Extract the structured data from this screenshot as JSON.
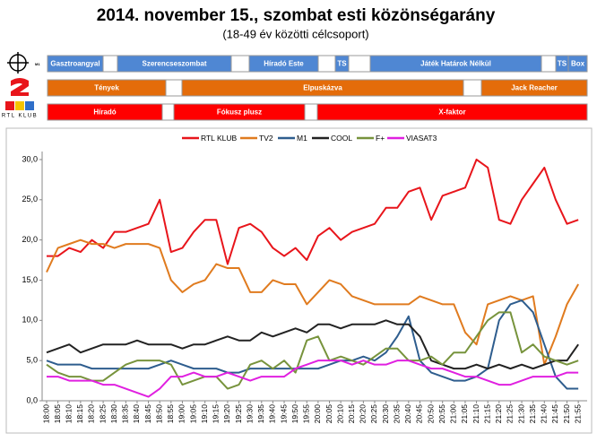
{
  "chart_data": {
    "type": "line",
    "title": "2014. november 15., szombat esti közönségarány",
    "subtitle": "(18-49 év közötti célcsoport)",
    "schedule": [
      {
        "channel": "M1",
        "programs": [
          "Gasztroangyal",
          "Szerencseszombat",
          "Híradó Este",
          "TS",
          "Játék Határok Nélkül",
          "TS",
          "Box"
        ]
      },
      {
        "programs": [
          "Tények",
          "Elpuskázva",
          "Jack Reacher"
        ]
      },
      {
        "channel": "RTL KLUB",
        "programs": [
          "Híradó",
          "Fókusz plusz",
          "X-faktor"
        ]
      }
    ],
    "categories": [
      "18:00",
      "18:05",
      "18:10",
      "18:15",
      "18:20",
      "18:25",
      "18:30",
      "18:35",
      "18:40",
      "18:45",
      "18:50",
      "18:55",
      "19:00",
      "19:05",
      "19:10",
      "19:15",
      "19:20",
      "19:25",
      "19:30",
      "19:35",
      "19:40",
      "19:45",
      "19:50",
      "19:55",
      "20:00",
      "20:05",
      "20:10",
      "20:15",
      "20:20",
      "20:25",
      "20:30",
      "20:35",
      "20:40",
      "20:45",
      "20:50",
      "20:55",
      "21:00",
      "21:05",
      "21:10",
      "21:15",
      "21:20",
      "21:25",
      "21:30",
      "21:35",
      "21:40",
      "21:45",
      "21:50",
      "21:55"
    ],
    "series": [
      {
        "name": "RTL KLUB",
        "color": "#e8151b",
        "values": [
          18,
          18,
          19,
          18.5,
          20,
          19,
          21,
          21,
          21.5,
          22,
          25,
          18.5,
          19,
          21,
          22.5,
          22.5,
          17,
          21.5,
          22,
          21,
          19,
          18,
          19,
          17.5,
          20.5,
          21.5,
          20,
          21,
          21.5,
          22,
          24,
          24,
          26,
          26.5,
          22.5,
          25.5,
          26,
          26.5,
          30,
          29,
          22.5,
          22,
          25,
          27,
          29,
          25,
          22,
          22.5
        ]
      },
      {
        "name": "TV2",
        "color": "#e07b1f",
        "values": [
          16,
          19,
          19.5,
          20,
          19.5,
          19.5,
          19,
          19.5,
          19.5,
          19.5,
          19,
          15,
          13.5,
          14.5,
          15,
          17,
          16.5,
          16.5,
          13.5,
          13.5,
          15,
          14.5,
          14.5,
          12,
          13.5,
          15,
          14.5,
          13,
          12.5,
          12,
          12,
          12,
          12,
          13,
          12.5,
          12,
          12,
          8.5,
          7,
          12,
          12.5,
          13,
          12.5,
          13,
          4.5,
          8,
          12,
          14.5
        ]
      },
      {
        "name": "M1",
        "color": "#2e5d8e",
        "values": [
          5,
          4.5,
          4.5,
          4.5,
          4,
          4,
          4,
          4,
          4,
          4,
          4.5,
          5,
          4.5,
          4,
          4,
          4,
          3.5,
          3.5,
          4,
          4,
          4,
          4,
          4,
          4,
          4,
          4.5,
          5,
          5,
          5.5,
          5,
          6,
          8,
          10.5,
          5,
          3.5,
          3,
          2.5,
          2.5,
          3,
          4,
          10,
          12,
          12.5,
          11,
          7,
          3,
          1.5,
          1.5
        ]
      },
      {
        "name": "COOL",
        "color": "#222222",
        "values": [
          6,
          6.5,
          7,
          6,
          6.5,
          7,
          7,
          7,
          7.5,
          7,
          7,
          7,
          6.5,
          7,
          7,
          7.5,
          8,
          7.5,
          7.5,
          8.5,
          8,
          8.5,
          9,
          8.5,
          9.5,
          9.5,
          9,
          9.5,
          9.5,
          9.5,
          10,
          9.5,
          9.5,
          8,
          5,
          4.5,
          4,
          4,
          4.5,
          4,
          4.5,
          4,
          4.5,
          4,
          4.5,
          5,
          5,
          7
        ]
      },
      {
        "name": "F+",
        "color": "#77933c",
        "values": [
          4.5,
          3.5,
          3,
          3,
          2.5,
          2.5,
          3.5,
          4.5,
          5,
          5,
          5,
          4.5,
          2,
          2.5,
          3,
          3,
          1.5,
          2,
          4.5,
          5,
          4,
          5,
          3.5,
          7.5,
          8,
          5,
          5.5,
          5,
          4.5,
          5.5,
          6.5,
          6.5,
          5,
          5,
          5.5,
          4.5,
          6,
          6,
          8,
          10,
          11,
          11,
          6,
          7,
          5.5,
          5,
          4.5,
          5
        ]
      },
      {
        "name": "VIASAT3",
        "color": "#e020e0",
        "values": [
          3,
          3,
          2.5,
          2.5,
          2.5,
          2,
          2,
          1.5,
          1,
          0.5,
          1.5,
          3,
          3,
          3.5,
          3,
          3,
          3.5,
          3,
          2.5,
          3,
          3,
          3,
          4,
          4.5,
          5,
          5,
          5,
          4.5,
          5,
          4.5,
          4.5,
          5,
          5,
          4.5,
          4,
          4,
          3.5,
          3,
          3,
          2.5,
          2,
          2,
          2.5,
          3,
          3,
          3,
          3.5,
          3.5
        ]
      }
    ],
    "ylim": [
      0,
      31
    ],
    "yticks": [
      {
        "value": 0,
        "label": "0,0"
      },
      {
        "value": 5,
        "label": "5,0"
      },
      {
        "value": 10,
        "label": "10,0"
      },
      {
        "value": 15,
        "label": "15,0"
      },
      {
        "value": 20,
        "label": "20,0"
      },
      {
        "value": 25,
        "label": "25,0"
      },
      {
        "value": 30,
        "label": "30,0"
      }
    ],
    "grid": false,
    "legend": "top"
  }
}
